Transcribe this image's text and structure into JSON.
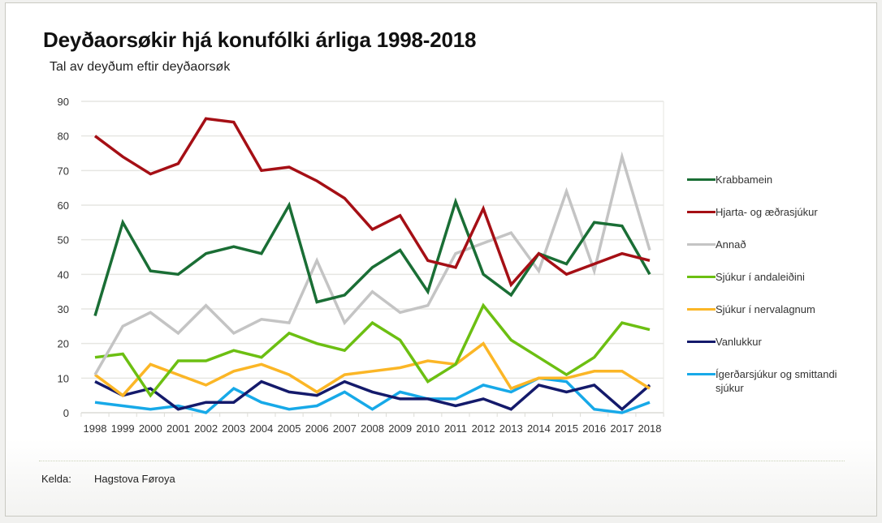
{
  "title": "Deyðaorsøkir hjá konufólki árliga 1998-2018",
  "subtitle": "Tal av deyðum eftir deyðaorsøk",
  "source": {
    "label": "Kelda:",
    "value": "Hagstova Føroya"
  },
  "chart_data": {
    "type": "line",
    "title": "Deyðaorsøkir hjá konufólki árliga 1998-2018",
    "subtitle": "Tal av deyðum eftir deyðaorsøk",
    "xlabel": "",
    "ylabel": "",
    "ylim": [
      0,
      90
    ],
    "yticks": [
      0,
      10,
      20,
      30,
      40,
      50,
      60,
      70,
      80,
      90
    ],
    "grid": true,
    "legend_position": "right",
    "x": [
      "1998",
      "1999",
      "2000",
      "2001",
      "2002",
      "2003",
      "2004",
      "2005",
      "2006",
      "2007",
      "2008",
      "2009",
      "2010",
      "2011",
      "2012",
      "2013",
      "2014",
      "2015",
      "2016",
      "2017",
      "2018"
    ],
    "series": [
      {
        "name": "Krabbamein",
        "color": "#1a6e35",
        "values": [
          28,
          55,
          41,
          40,
          46,
          48,
          46,
          60,
          32,
          34,
          42,
          47,
          35,
          61,
          40,
          34,
          46,
          43,
          55,
          54,
          40
        ]
      },
      {
        "name": "Hjarta- og æðrasjúkur",
        "color": "#a50f15",
        "values": [
          80,
          74,
          69,
          72,
          85,
          84,
          70,
          71,
          67,
          62,
          53,
          57,
          44,
          42,
          59,
          37,
          46,
          40,
          43,
          46,
          44
        ]
      },
      {
        "name": "Annað",
        "color": "#c4c4c4",
        "values": [
          11,
          25,
          29,
          23,
          31,
          23,
          27,
          26,
          44,
          26,
          35,
          29,
          31,
          46,
          49,
          52,
          41,
          64,
          41,
          74,
          47
        ]
      },
      {
        "name": "Sjúkur í andaleiðini",
        "color": "#6cbf12",
        "values": [
          16,
          17,
          5,
          15,
          15,
          18,
          16,
          23,
          20,
          18,
          26,
          21,
          9,
          14,
          31,
          21,
          16,
          11,
          16,
          26,
          24
        ]
      },
      {
        "name": "Sjúkur í nervalagnum",
        "color": "#fbb626",
        "values": [
          11,
          5,
          14,
          11,
          8,
          12,
          14,
          11,
          6,
          11,
          12,
          13,
          15,
          14,
          20,
          7,
          10,
          10,
          12,
          12,
          7
        ]
      },
      {
        "name": "Vanlukkur",
        "color": "#141a6b",
        "values": [
          9,
          5,
          7,
          1,
          3,
          3,
          9,
          6,
          5,
          9,
          6,
          4,
          4,
          2,
          4,
          1,
          8,
          6,
          8,
          1,
          8
        ]
      },
      {
        "name": "Ígerðarsjúkur og smittandi sjúkur",
        "color": "#17a9e8",
        "values": [
          3,
          2,
          1,
          2,
          0,
          7,
          3,
          1,
          2,
          6,
          1,
          6,
          4,
          4,
          8,
          6,
          10,
          9,
          1,
          0,
          3
        ]
      }
    ]
  }
}
